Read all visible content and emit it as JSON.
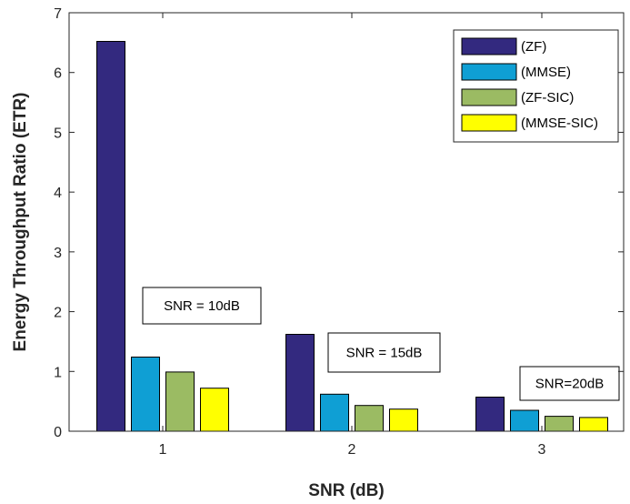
{
  "chart_data": {
    "type": "bar",
    "title": "",
    "xlabel": "SNR (dB)",
    "ylabel": "Energy Throughput Ratio (ETR)",
    "categories": [
      "1",
      "2",
      "3"
    ],
    "ylim": [
      0,
      7
    ],
    "yticks": [
      0,
      1,
      2,
      3,
      4,
      5,
      6,
      7
    ],
    "grid": false,
    "legend_position": "top-right",
    "series": [
      {
        "name": "(ZF)",
        "color": "#33297f",
        "values": [
          6.52,
          1.62,
          0.57
        ]
      },
      {
        "name": "(MMSE)",
        "color": "#0f9fd4",
        "values": [
          1.24,
          0.62,
          0.35
        ]
      },
      {
        "name": "(ZF-SIC)",
        "color": "#9bbb63",
        "values": [
          0.99,
          0.43,
          0.25
        ]
      },
      {
        "name": "(MMSE-SIC)",
        "color": "#ffff00",
        "values": [
          0.72,
          0.37,
          0.23
        ]
      }
    ],
    "annotations": [
      {
        "text": "SNR = 10dB",
        "category": "1"
      },
      {
        "text": "SNR = 15dB",
        "category": "2"
      },
      {
        "text": "SNR=20dB",
        "category": "3"
      }
    ]
  }
}
